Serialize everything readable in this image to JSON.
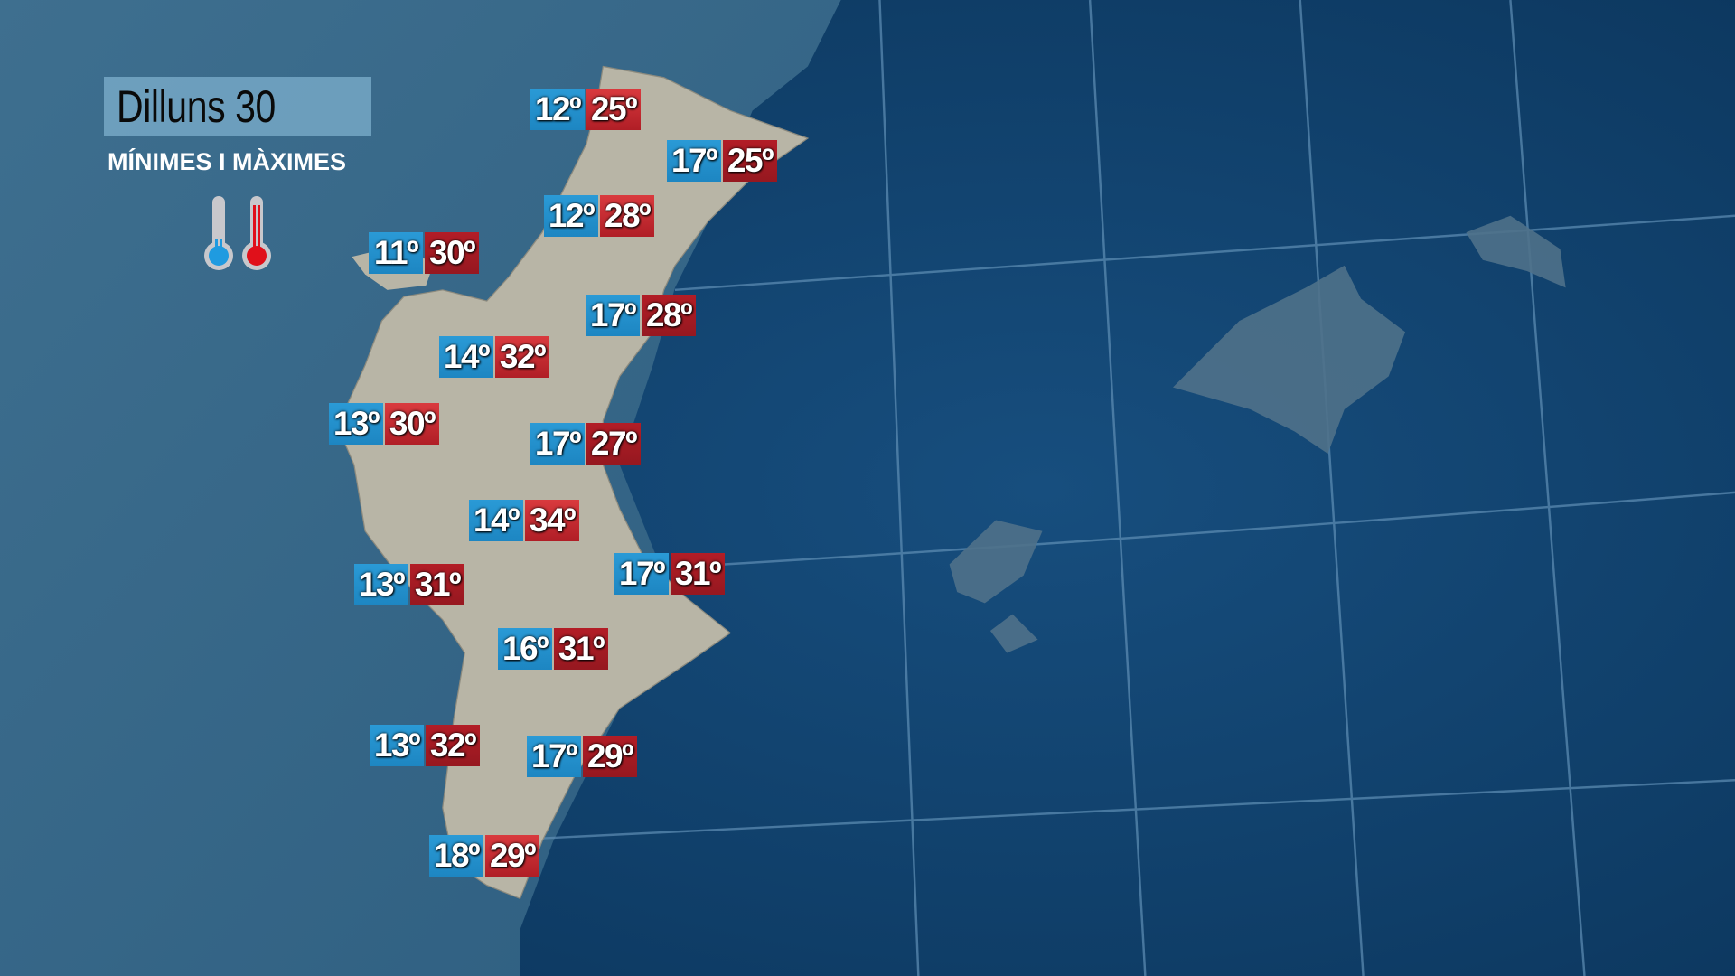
{
  "header": {
    "title": "Dilluns 30",
    "subtitle": "MÍNIMES I MÀXIMES"
  },
  "legend": {
    "min_icon": "thermometer-cold-icon",
    "max_icon": "thermometer-hot-icon"
  },
  "colors": {
    "min": "#1d8ac6",
    "max": "#c42a30",
    "sea": "#0f3f68",
    "land": "#b9b6a8"
  },
  "stations": [
    {
      "min": "12º",
      "max": "25º"
    },
    {
      "min": "17º",
      "max": "25º"
    },
    {
      "min": "12º",
      "max": "28º"
    },
    {
      "min": "11º",
      "max": "30º"
    },
    {
      "min": "17º",
      "max": "28º"
    },
    {
      "min": "14º",
      "max": "32º"
    },
    {
      "min": "13º",
      "max": "30º"
    },
    {
      "min": "17º",
      "max": "27º"
    },
    {
      "min": "14º",
      "max": "34º"
    },
    {
      "min": "13º",
      "max": "31º"
    },
    {
      "min": "17º",
      "max": "31º"
    },
    {
      "min": "16º",
      "max": "31º"
    },
    {
      "min": "13º",
      "max": "32º"
    },
    {
      "min": "17º",
      "max": "29º"
    },
    {
      "min": "18º",
      "max": "29º"
    }
  ]
}
